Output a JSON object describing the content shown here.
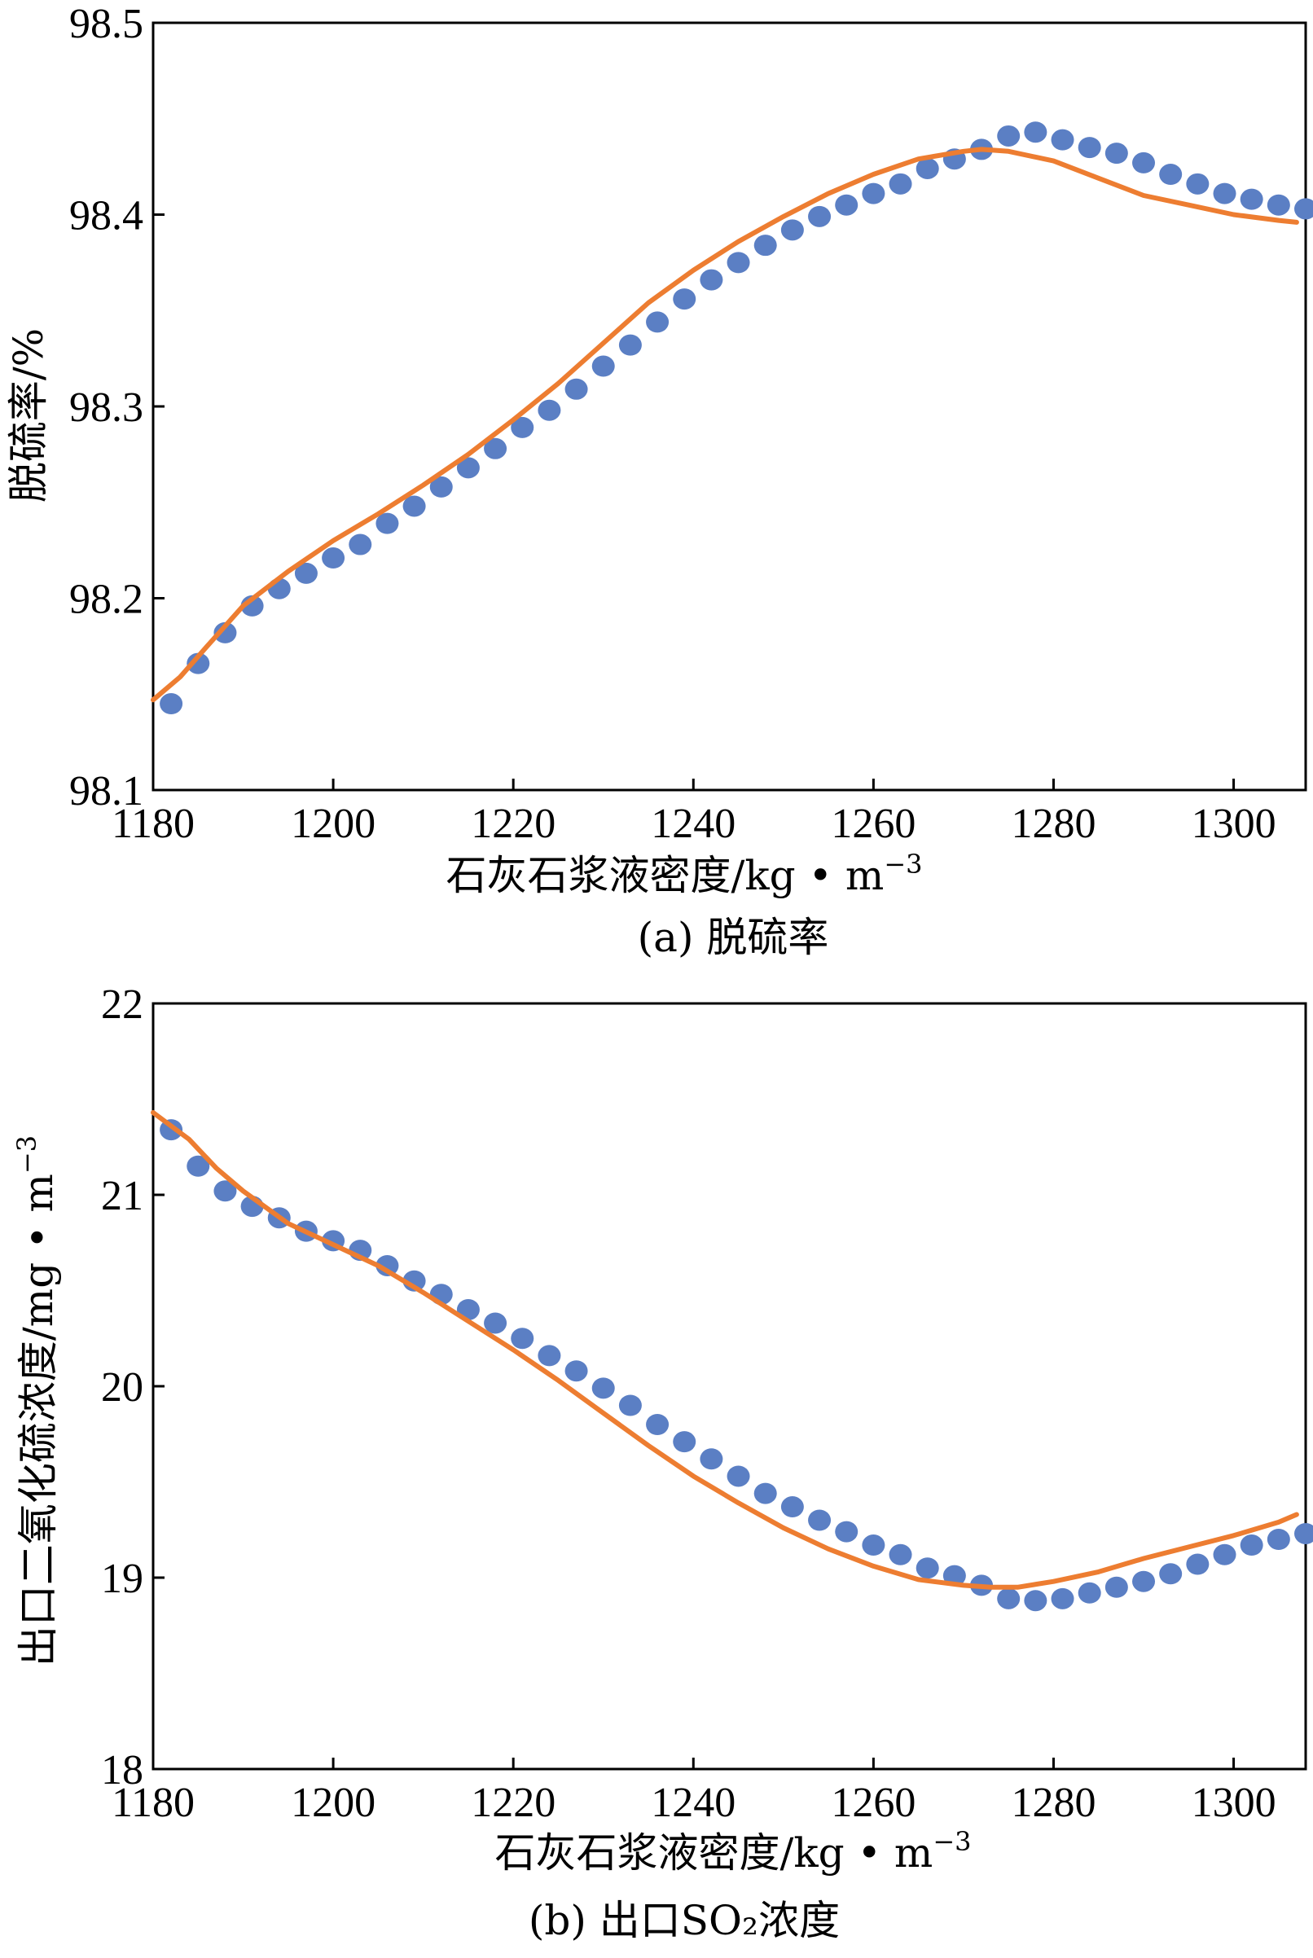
{
  "chart_data": [
    {
      "type": "scatter",
      "title": "",
      "caption": "(a) 脱硫率",
      "xlabel": "石灰石浆液密度/kg • m",
      "xlabel_sup": "−3",
      "ylabel": "脱硫率/%",
      "ylabel_sup": "",
      "xlim": [
        1180,
        1308
      ],
      "ylim": [
        98.1,
        98.5
      ],
      "x_ticks": [
        1180,
        1200,
        1220,
        1240,
        1260,
        1280,
        1300
      ],
      "x_tick_labels": [
        "1180",
        "1200",
        "1220",
        "1240",
        "1260",
        "1280",
        "1300"
      ],
      "y_ticks": [
        98.1,
        98.2,
        98.3,
        98.4,
        98.5
      ],
      "y_tick_labels": [
        "98.1",
        "98.2",
        "98.3",
        "98.4",
        "98.5"
      ],
      "grid": false,
      "colors": {
        "points": "#5b7fc4",
        "line": "#ed7d31"
      },
      "series": [
        {
          "kind": "points",
          "x": [
            1182,
            1185,
            1188,
            1191,
            1194,
            1197,
            1200,
            1203,
            1206,
            1209,
            1212,
            1215,
            1218,
            1221,
            1224,
            1227,
            1230,
            1233,
            1236,
            1239,
            1242,
            1245,
            1248,
            1251,
            1254,
            1257,
            1260,
            1263,
            1266,
            1269,
            1272,
            1275,
            1278,
            1281,
            1284,
            1287,
            1290,
            1293,
            1296,
            1299,
            1302,
            1305,
            1308
          ],
          "y": [
            98.145,
            98.166,
            98.182,
            98.196,
            98.205,
            98.213,
            98.221,
            98.228,
            98.239,
            98.248,
            98.258,
            98.268,
            98.278,
            98.289,
            98.298,
            98.309,
            98.321,
            98.332,
            98.344,
            98.356,
            98.366,
            98.375,
            98.384,
            98.392,
            98.399,
            98.405,
            98.411,
            98.416,
            98.424,
            98.429,
            98.434,
            98.441,
            98.443,
            98.439,
            98.435,
            98.432,
            98.427,
            98.421,
            98.416,
            98.411,
            98.408,
            98.405,
            98.403
          ]
        },
        {
          "kind": "line",
          "x": [
            1180,
            1183,
            1186,
            1190,
            1195,
            1200,
            1205,
            1210,
            1215,
            1220,
            1225,
            1230,
            1235,
            1240,
            1245,
            1250,
            1255,
            1260,
            1265,
            1270,
            1272,
            1275,
            1280,
            1285,
            1290,
            1295,
            1300,
            1305,
            1307
          ],
          "y": [
            98.147,
            98.159,
            98.175,
            98.196,
            98.214,
            98.23,
            98.244,
            98.259,
            98.275,
            98.293,
            98.312,
            98.333,
            98.354,
            98.371,
            98.386,
            98.399,
            98.411,
            98.421,
            98.429,
            98.433,
            98.434,
            98.433,
            98.428,
            98.419,
            98.41,
            98.405,
            98.4,
            98.397,
            98.396
          ]
        }
      ]
    },
    {
      "type": "scatter",
      "title": "",
      "caption": "(b) 出口SO₂浓度",
      "xlabel": "石灰石浆液密度/kg • m",
      "xlabel_sup": "−3",
      "ylabel": "出口二氧化硫浓度/mg • m",
      "ylabel_sup": "−3",
      "xlim": [
        1180,
        1308
      ],
      "ylim": [
        18,
        22
      ],
      "x_ticks": [
        1180,
        1200,
        1220,
        1240,
        1260,
        1280,
        1300
      ],
      "x_tick_labels": [
        "1180",
        "1200",
        "1220",
        "1240",
        "1260",
        "1280",
        "1300"
      ],
      "y_ticks": [
        18,
        19,
        20,
        21,
        22
      ],
      "y_tick_labels": [
        "18",
        "19",
        "20",
        "21",
        "22"
      ],
      "grid": false,
      "colors": {
        "points": "#5b7fc4",
        "line": "#ed7d31"
      },
      "series": [
        {
          "kind": "points",
          "x": [
            1182,
            1185,
            1188,
            1191,
            1194,
            1197,
            1200,
            1203,
            1206,
            1209,
            1212,
            1215,
            1218,
            1221,
            1224,
            1227,
            1230,
            1233,
            1236,
            1239,
            1242,
            1245,
            1248,
            1251,
            1254,
            1257,
            1260,
            1263,
            1266,
            1269,
            1272,
            1275,
            1278,
            1281,
            1284,
            1287,
            1290,
            1293,
            1296,
            1299,
            1302,
            1305,
            1308
          ],
          "y": [
            21.34,
            21.15,
            21.02,
            20.94,
            20.88,
            20.81,
            20.76,
            20.71,
            20.63,
            20.55,
            20.48,
            20.4,
            20.33,
            20.25,
            20.16,
            20.08,
            19.99,
            19.9,
            19.8,
            19.71,
            19.62,
            19.53,
            19.44,
            19.37,
            19.3,
            19.24,
            19.17,
            19.12,
            19.05,
            19.01,
            18.96,
            18.89,
            18.88,
            18.89,
            18.92,
            18.95,
            18.98,
            19.02,
            19.07,
            19.12,
            19.17,
            19.2,
            19.23
          ]
        },
        {
          "kind": "line",
          "x": [
            1180,
            1184,
            1187,
            1190,
            1195,
            1200,
            1205,
            1210,
            1215,
            1220,
            1225,
            1230,
            1235,
            1240,
            1245,
            1250,
            1255,
            1260,
            1265,
            1270,
            1273,
            1276,
            1280,
            1285,
            1290,
            1295,
            1300,
            1305,
            1307
          ],
          "y": [
            21.43,
            21.29,
            21.14,
            21.02,
            20.85,
            20.74,
            20.63,
            20.49,
            20.34,
            20.19,
            20.03,
            19.86,
            19.69,
            19.53,
            19.39,
            19.26,
            19.15,
            19.06,
            18.99,
            18.96,
            18.95,
            18.95,
            18.98,
            19.03,
            19.1,
            19.16,
            19.22,
            19.29,
            19.33
          ]
        }
      ]
    }
  ]
}
